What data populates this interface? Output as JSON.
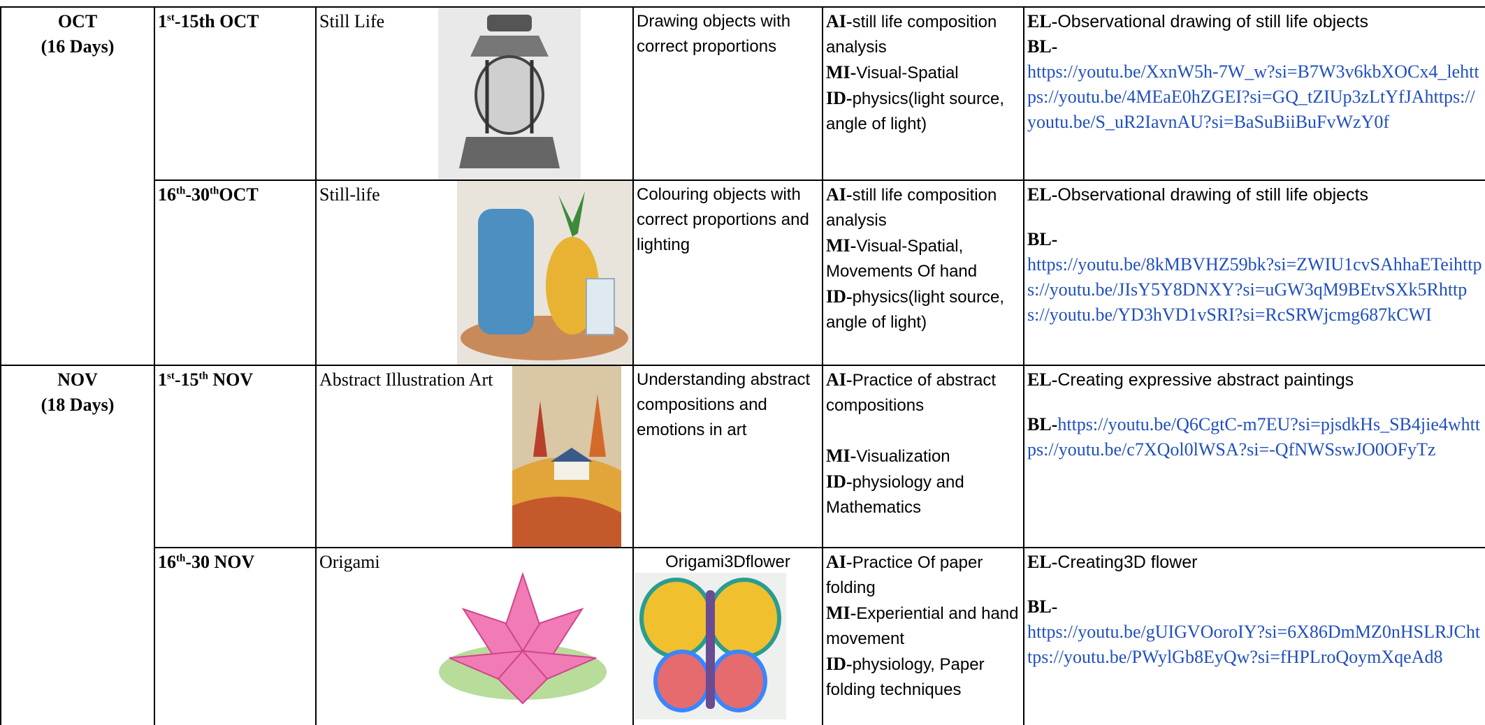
{
  "months": [
    {
      "name": "OCT",
      "days": "(16 Days)",
      "rows": [
        {
          "dates": [
            "1",
            "st",
            "-15th OCT"
          ],
          "topic": "Still Life",
          "objective": "Drawing objects with correct proportions",
          "aimi": [
            {
              "label": "AI-",
              "text": "still life composition analysis"
            },
            {
              "label": "MI-",
              "text": "Visual-Spatial"
            },
            {
              "label": "ID-",
              "text": "physics(light source, angle of light)"
            }
          ],
          "el": {
            "label": "EL-",
            "text": "Observational drawing of still life objects"
          },
          "bl": {
            "label": "BL-",
            "text": "https://youtu.be/XxnW5h-7W_w?si=B7W3v6kbXOCx4_lehttps://youtu.be/4MEaE0hZGEI?si=GQ_tZIUp3zLtYfJAhttps://youtu.be/S_uR2IavnAU?si=BaSuBiiBuFvWzY0f"
          }
        },
        {
          "dates": [
            "16",
            "th",
            "-30",
            "th",
            "OCT"
          ],
          "topic": "Still-life",
          "objective": "Colouring objects with correct proportions and lighting",
          "aimi": [
            {
              "label": "AI-",
              "text": "still life composition analysis"
            },
            {
              "label": "MI-",
              "text": "Visual-Spatial, Movements Of hand"
            },
            {
              "label": "ID-",
              "text": "physics(light source, angle of light)"
            }
          ],
          "el": {
            "label": "EL-",
            "text": "Observational drawing of still life objects"
          },
          "bl": {
            "label": "BL-",
            "text": "https://youtu.be/8kMBVHZ59bk?si=ZWIU1cvSAhhaETeihttps://youtu.be/JIsY5Y8DNXY?si=uGW3qM9BEtvSXk5Rhttps://youtu.be/YD3hVD1vSRI?si=RcSRWjcmg687kCWI"
          }
        }
      ]
    },
    {
      "name": "NOV",
      "days": "(18 Days)",
      "rows": [
        {
          "dates": [
            "1",
            "st",
            "-15",
            "th",
            " NOV"
          ],
          "topic": "Abstract Illustration Art",
          "objective": "Understanding abstract compositions and emotions in art",
          "aimi": [
            {
              "label": "AI-",
              "text": "Practice of abstract compositions"
            },
            {
              "label": "MI-",
              "text": "Visualization"
            },
            {
              "label": "ID-",
              "text": "physiology and Mathematics"
            }
          ],
          "el": {
            "label": "EL-",
            "text": "Creating expressive abstract paintings"
          },
          "bl": {
            "label": "BL-",
            "text": "https://youtu.be/Q6CgtC-m7EU?si=pjsdkHs_SB4jie4whttps://youtu.be/c7XQol0lWSA?si=-QfNWSswJO0OFyTz"
          }
        },
        {
          "dates": [
            "16",
            "th",
            "-30 NOV"
          ],
          "topic": "Origami",
          "objective": "Origami3Dflower",
          "aimi": [
            {
              "label": "AI-",
              "text": "Practice Of paper folding"
            },
            {
              "label": "MI-",
              "text": "Experiential and hand movement"
            },
            {
              "label": "ID-",
              "text": "physiology, Paper folding techniques"
            }
          ],
          "el": {
            "label": "EL-",
            "text": "Creating3D flower"
          },
          "bl": {
            "label": "BL-",
            "text": "https://youtu.be/gUIGVOoroIY?si=6X86DmMZ0nHSLRJChttps://youtu.be/PWylGb8EyQw?si=fHPLroQoymXqeAd8"
          }
        }
      ]
    }
  ]
}
